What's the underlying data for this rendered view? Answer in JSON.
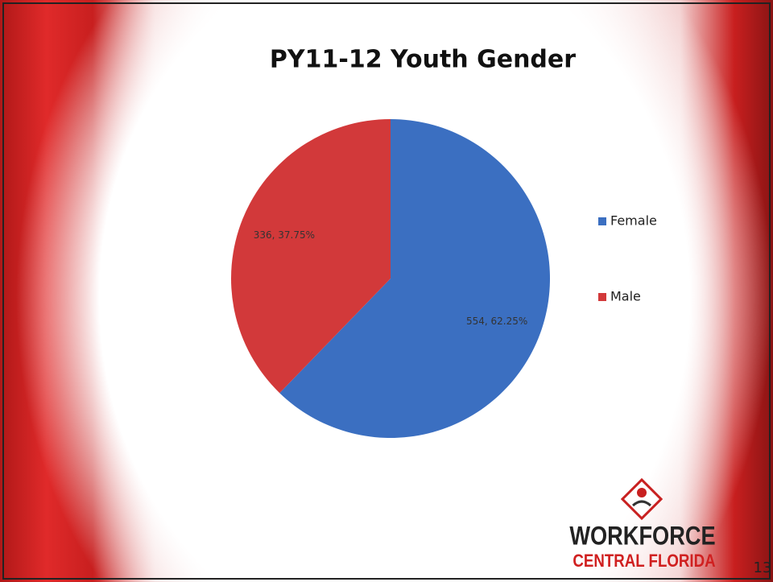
{
  "chart_data": {
    "type": "pie",
    "title": "PY11-12 Youth Gender",
    "categories": [
      "Female",
      "Male"
    ],
    "values": [
      554,
      336
    ],
    "value_labels": [
      "554, 62.25%",
      "336, 37.75%"
    ],
    "colors": [
      "#3b6fc1",
      "#d2393a"
    ],
    "legend": "right"
  },
  "logo": {
    "line1": "WORKFORCE",
    "line2": "CENTRAL FLORIDA"
  },
  "page_number": 13
}
